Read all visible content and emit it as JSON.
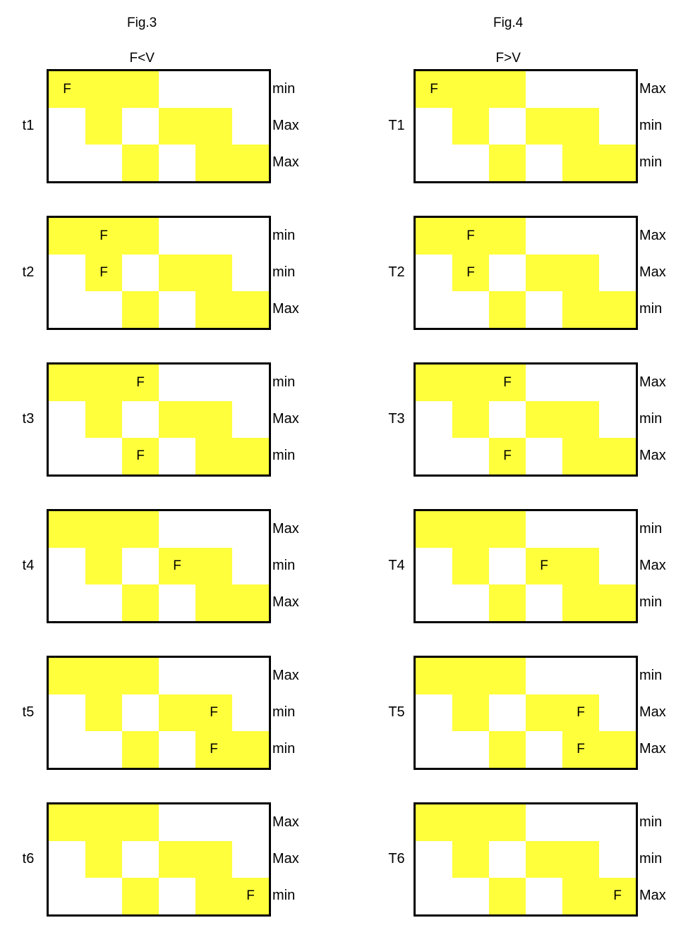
{
  "colors": {
    "fill": "#ffff3c",
    "border": "#000000",
    "background": "#ffffff"
  },
  "pattern": [
    [
      1,
      1,
      1,
      0,
      0,
      0
    ],
    [
      0,
      1,
      0,
      1,
      1,
      0
    ],
    [
      0,
      0,
      1,
      0,
      1,
      1
    ]
  ],
  "figures": [
    {
      "title": "Fig.3",
      "subtitle": "F<V",
      "panels": [
        {
          "label": "t1",
          "side": [
            "min",
            "Max",
            "Max"
          ],
          "f_cells": [
            [
              0,
              0
            ]
          ]
        },
        {
          "label": "t2",
          "side": [
            "min",
            "min",
            "Max"
          ],
          "f_cells": [
            [
              0,
              1
            ],
            [
              1,
              1
            ]
          ]
        },
        {
          "label": "t3",
          "side": [
            "min",
            "Max",
            "min"
          ],
          "f_cells": [
            [
              0,
              2
            ],
            [
              2,
              2
            ]
          ]
        },
        {
          "label": "t4",
          "side": [
            "Max",
            "min",
            "Max"
          ],
          "f_cells": [
            [
              1,
              3
            ]
          ]
        },
        {
          "label": "t5",
          "side": [
            "Max",
            "min",
            "min"
          ],
          "f_cells": [
            [
              1,
              4
            ],
            [
              2,
              4
            ]
          ]
        },
        {
          "label": "t6",
          "side": [
            "Max",
            "Max",
            "min"
          ],
          "f_cells": [
            [
              2,
              5
            ]
          ]
        }
      ]
    },
    {
      "title": "Fig.4",
      "subtitle": "F>V",
      "panels": [
        {
          "label": "T1",
          "side": [
            "Max",
            "min",
            "min"
          ],
          "f_cells": [
            [
              0,
              0
            ]
          ]
        },
        {
          "label": "T2",
          "side": [
            "Max",
            "Max",
            "min"
          ],
          "f_cells": [
            [
              0,
              1
            ],
            [
              1,
              1
            ]
          ]
        },
        {
          "label": "T3",
          "side": [
            "Max",
            "min",
            "Max"
          ],
          "f_cells": [
            [
              0,
              2
            ],
            [
              2,
              2
            ]
          ]
        },
        {
          "label": "T4",
          "side": [
            "min",
            "Max",
            "min"
          ],
          "f_cells": [
            [
              1,
              3
            ]
          ]
        },
        {
          "label": "T5",
          "side": [
            "min",
            "Max",
            "Max"
          ],
          "f_cells": [
            [
              1,
              4
            ],
            [
              2,
              4
            ]
          ]
        },
        {
          "label": "T6",
          "side": [
            "min",
            "min",
            "Max"
          ],
          "f_cells": [
            [
              2,
              5
            ]
          ]
        }
      ]
    }
  ],
  "cell_text": "F"
}
